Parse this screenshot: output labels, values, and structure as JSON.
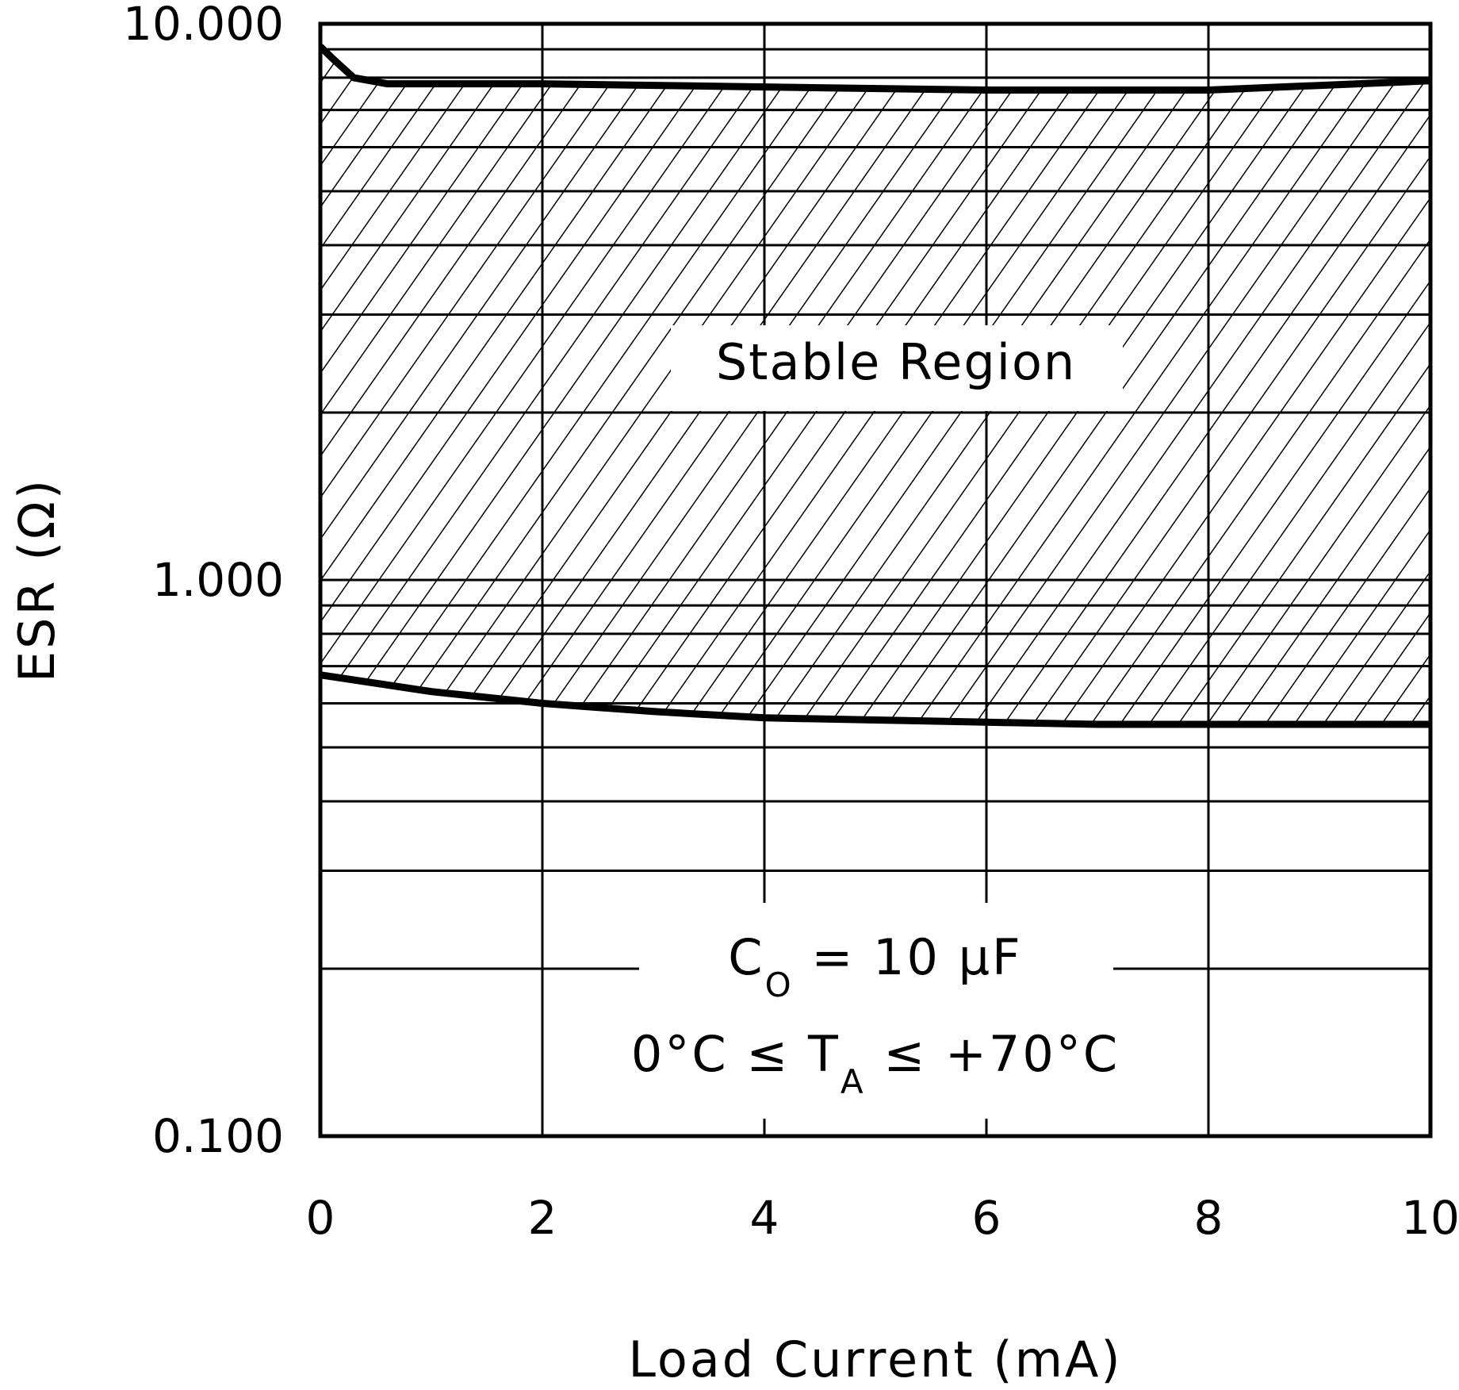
{
  "chart_data": {
    "type": "area",
    "title": "",
    "xlabel": "Load Current (mA)",
    "ylabel": "ESR (Ω)",
    "xlim": [
      0,
      10
    ],
    "ylim": [
      0.1,
      10
    ],
    "y_scale": "log",
    "grid": true,
    "x_ticks": [
      0,
      2,
      4,
      6,
      8,
      10
    ],
    "x_tick_labels": [
      "0",
      "2",
      "4",
      "6",
      "8",
      "10"
    ],
    "y_ticks": [
      0.1,
      1,
      10
    ],
    "y_tick_labels": [
      "0.100",
      "1.000",
      "10.000"
    ],
    "y_minor_gridlines": [
      0.2,
      0.3,
      0.4,
      0.5,
      0.6,
      0.7,
      0.8,
      0.9,
      2,
      3,
      4,
      5,
      6,
      7,
      8,
      9
    ],
    "series": [
      {
        "role": "upper boundary",
        "x": [
          0,
          0.1,
          0.3,
          0.6,
          2,
          4,
          6,
          8,
          10
        ],
        "values": [
          9.1,
          8.7,
          8.0,
          7.8,
          7.8,
          7.7,
          7.6,
          7.6,
          7.9
        ]
      },
      {
        "role": "lower boundary",
        "x": [
          0,
          1,
          2,
          3,
          4,
          5,
          6,
          7,
          8,
          10
        ],
        "values": [
          0.675,
          0.63,
          0.6,
          0.58,
          0.565,
          0.56,
          0.555,
          0.55,
          0.55,
          0.55
        ]
      }
    ],
    "annotations": {
      "region_label": "Stable Region",
      "condition_line1": {
        "main": "C",
        "sub": "O",
        "rest": " =  10 μF"
      },
      "condition_line2": {
        "before": "0°C  ≤  T",
        "sub": "A",
        "after": "  ≤  +70°C"
      }
    }
  }
}
